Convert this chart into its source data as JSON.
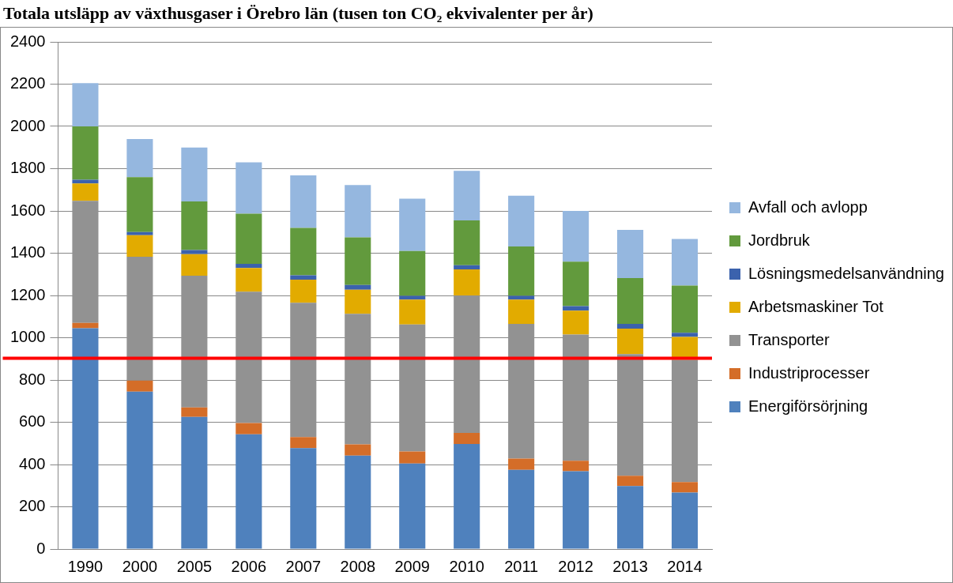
{
  "chart_data": {
    "type": "bar",
    "title": "Totala utsläpp av växthusgaser i Örebro län (tusen ton CO₂ ekvivalenter per år)",
    "categories": [
      "1990",
      "2000",
      "2005",
      "2006",
      "2007",
      "2008",
      "2009",
      "2010",
      "2011",
      "2012",
      "2013",
      "2014"
    ],
    "stacked": true,
    "series": [
      {
        "name": "Energiförsörjning",
        "color": "#4f81bd",
        "values": [
          1045,
          745,
          625,
          543,
          478,
          442,
          405,
          497,
          375,
          368,
          298,
          267
        ]
      },
      {
        "name": "Industriprocesser",
        "color": "#d46d28",
        "values": [
          25,
          52,
          45,
          53,
          52,
          53,
          57,
          53,
          53,
          50,
          49,
          50
        ]
      },
      {
        "name": "Transporter",
        "color": "#929292",
        "values": [
          578,
          586,
          623,
          622,
          635,
          618,
          601,
          650,
          637,
          597,
          575,
          578
        ]
      },
      {
        "name": "Arbetsmaskiner Tot",
        "color": "#e2ab00",
        "values": [
          82,
          102,
          102,
          112,
          110,
          114,
          117,
          123,
          115,
          113,
          121,
          109
        ]
      },
      {
        "name": "Lösningsmedelsanvändning",
        "color": "#3b62ad",
        "values": [
          18,
          15,
          20,
          20,
          20,
          23,
          18,
          20,
          18,
          22,
          22,
          19
        ]
      },
      {
        "name": "Jordbruk",
        "color": "#629a3d",
        "values": [
          252,
          260,
          230,
          237,
          225,
          225,
          212,
          212,
          234,
          210,
          217,
          224
        ]
      },
      {
        "name": "Avfall och avlopp",
        "color": "#95b7df",
        "values": [
          205,
          180,
          255,
          243,
          248,
          247,
          248,
          235,
          240,
          240,
          228,
          220
        ]
      }
    ],
    "ylim": [
      0,
      2400
    ],
    "yticks": [
      0,
      200,
      400,
      600,
      800,
      1000,
      1200,
      1400,
      1600,
      1800,
      2000,
      2200,
      2400
    ],
    "grid": "y",
    "legend": "right",
    "ref_lines": [
      {
        "axis": "y",
        "value": 903,
        "color": "#ff0000"
      }
    ]
  }
}
